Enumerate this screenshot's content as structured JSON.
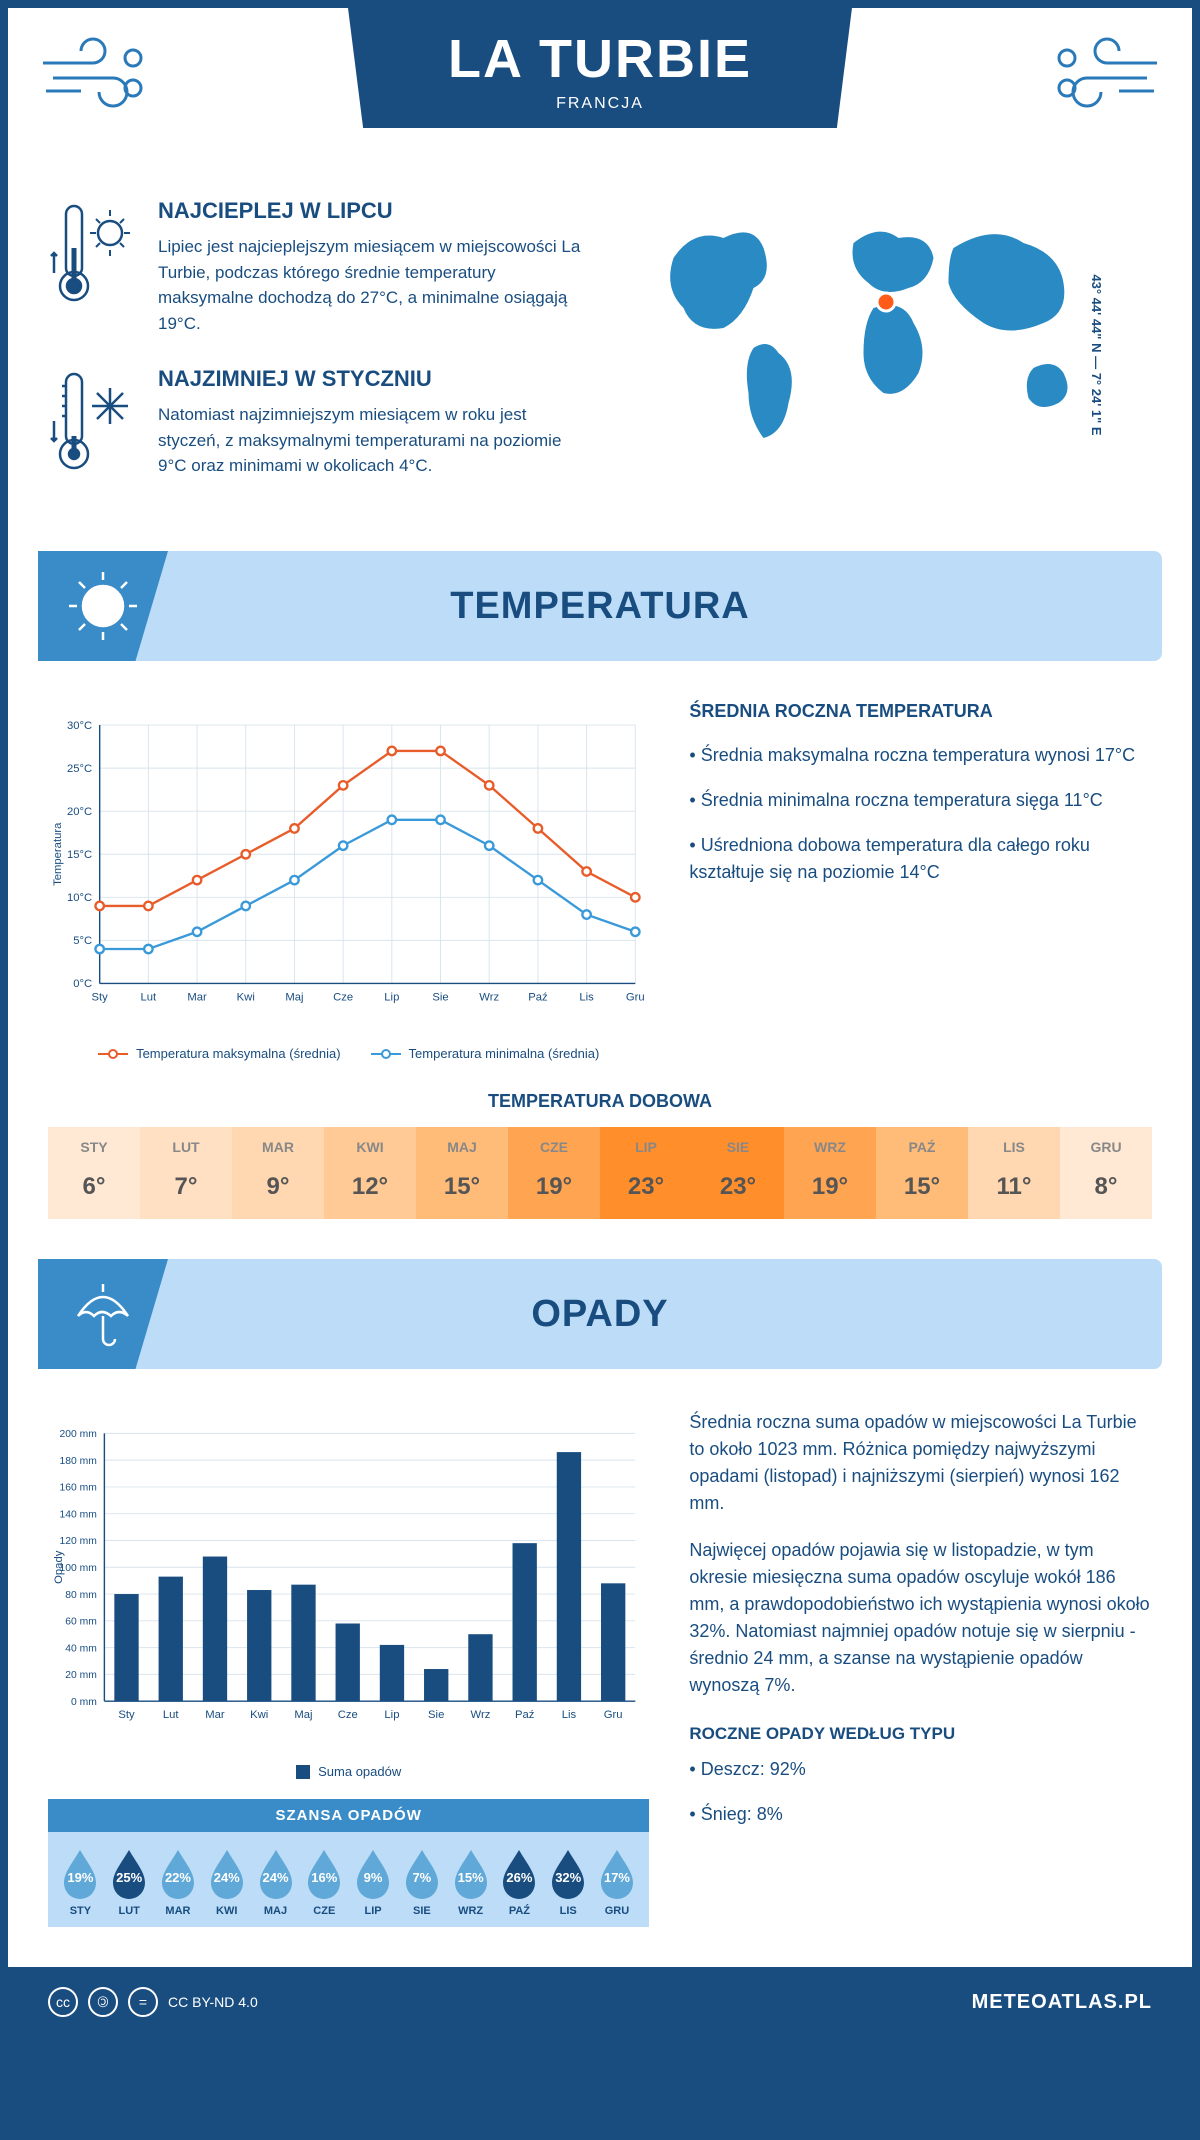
{
  "header": {
    "city": "LA TURBIE",
    "country": "FRANCJA"
  },
  "coords": "43° 44' 44\" N — 7° 24' 1\" E",
  "map": {
    "continent_color": "#2a8ac4",
    "marker_color": "#ff5c1a",
    "marker_x": 0.505,
    "marker_y": 0.4
  },
  "facts": {
    "hot": {
      "title": "NAJCIEPLEJ W LIPCU",
      "text": "Lipiec jest najcieplejszym miesiącem w miejscowości La Turbie, podczas którego średnie temperatury maksymalne dochodzą do 27°C, a minimalne osiągają 19°C."
    },
    "cold": {
      "title": "NAJZIMNIEJ W STYCZNIU",
      "text": "Natomiast najzimniejszym miesiącem w roku jest styczeń, z maksymalnymi temperaturami na poziomie 9°C oraz minimami w okolicach 4°C."
    }
  },
  "sections": {
    "temperature_title": "TEMPERATURA",
    "precip_title": "OPADY"
  },
  "temperature": {
    "annual_title": "ŚREDNIA ROCZNA TEMPERATURA",
    "bullets": [
      "Średnia maksymalna roczna temperatura wynosi 17°C",
      "Średnia minimalna roczna temperatura sięga 11°C",
      "Uśredniona dobowa temperatura dla całego roku kształtuje się na poziomie 14°C"
    ],
    "chart": {
      "months": [
        "Sty",
        "Lut",
        "Mar",
        "Kwi",
        "Maj",
        "Cze",
        "Lip",
        "Sie",
        "Wrz",
        "Paź",
        "Lis",
        "Gru"
      ],
      "max_series": [
        9,
        9,
        12,
        15,
        18,
        23,
        27,
        27,
        23,
        18,
        13,
        10
      ],
      "min_series": [
        4,
        4,
        6,
        9,
        12,
        16,
        19,
        19,
        16,
        12,
        8,
        6
      ],
      "max_color": "#e85c2a",
      "min_color": "#3a9ad9",
      "ylim": [
        0,
        30
      ],
      "ytick_step": 5,
      "ylabel": "Temperatura",
      "grid_color": "#d8e4ee",
      "axis_color": "#194d80",
      "legend_max": "Temperatura maksymalna (średnia)",
      "legend_min": "Temperatura minimalna (średnia)"
    },
    "daily": {
      "title": "TEMPERATURA DOBOWA",
      "months": [
        "STY",
        "LUT",
        "MAR",
        "KWI",
        "MAJ",
        "CZE",
        "LIP",
        "SIE",
        "WRZ",
        "PAŹ",
        "LIS",
        "GRU"
      ],
      "values": [
        "6°",
        "7°",
        "9°",
        "12°",
        "15°",
        "19°",
        "23°",
        "23°",
        "19°",
        "15°",
        "11°",
        "8°"
      ],
      "colors": [
        "#ffe9d4",
        "#ffe0c2",
        "#ffd7b0",
        "#ffca95",
        "#ffbb78",
        "#ffa552",
        "#ff8e2b",
        "#ff8e2b",
        "#ffa552",
        "#ffbb78",
        "#ffd7b0",
        "#ffe9d4"
      ]
    }
  },
  "precip": {
    "para1": "Średnia roczna suma opadów w miejscowości La Turbie to około 1023 mm. Różnica pomiędzy najwyższymi opadami (listopad) i najniższymi (sierpień) wynosi 162 mm.",
    "para2": "Najwięcej opadów pojawia się w listopadzie, w tym okresie miesięczna suma opadów oscyluje wokół 186 mm, a prawdopodobieństwo ich wystąpienia wynosi około 32%. Natomiast najmniej opadów notuje się w sierpniu - średnio 24 mm, a szanse na wystąpienie opadów wynoszą 7%.",
    "chart": {
      "months": [
        "Sty",
        "Lut",
        "Mar",
        "Kwi",
        "Maj",
        "Cze",
        "Lip",
        "Sie",
        "Wrz",
        "Paź",
        "Lis",
        "Gru"
      ],
      "values": [
        80,
        93,
        108,
        83,
        87,
        58,
        42,
        24,
        50,
        118,
        186,
        88
      ],
      "bar_color": "#194d80",
      "ylim": [
        0,
        200
      ],
      "ytick_step": 20,
      "ylabel": "Opady",
      "grid_color": "#d8e4ee",
      "legend": "Suma opadów"
    },
    "chance": {
      "title": "SZANSA OPADÓW",
      "months": [
        "STY",
        "LUT",
        "MAR",
        "KWI",
        "MAJ",
        "CZE",
        "LIP",
        "SIE",
        "WRZ",
        "PAŹ",
        "LIS",
        "GRU"
      ],
      "values": [
        "19%",
        "25%",
        "22%",
        "24%",
        "24%",
        "16%",
        "9%",
        "7%",
        "15%",
        "26%",
        "32%",
        "17%"
      ],
      "nums": [
        19,
        25,
        22,
        24,
        24,
        16,
        9,
        7,
        15,
        26,
        32,
        17
      ],
      "low_color": "#5fa8d8",
      "high_color": "#194d80",
      "threshold": 25
    },
    "by_type": {
      "title": "ROCZNE OPADY WEDŁUG TYPU",
      "items": [
        "Deszcz: 92%",
        "Śnieg: 8%"
      ]
    }
  },
  "footer": {
    "license": "CC BY-ND 4.0",
    "brand": "METEOATLAS.PL"
  }
}
